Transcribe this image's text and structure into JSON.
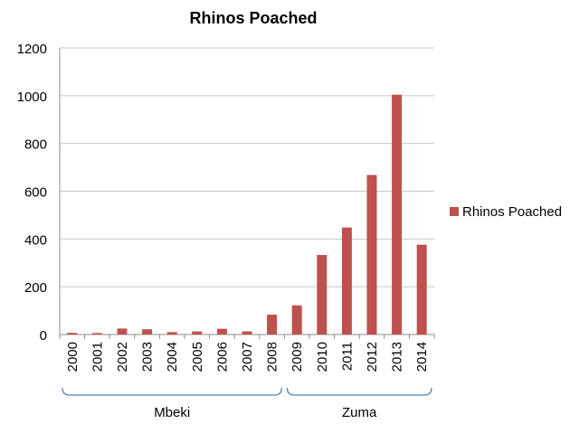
{
  "chart_data": {
    "type": "bar",
    "title": "Rhinos Poached",
    "categories": [
      "2000",
      "2001",
      "2002",
      "2003",
      "2004",
      "2005",
      "2006",
      "2007",
      "2008",
      "2009",
      "2010",
      "2011",
      "2012",
      "2013",
      "2014"
    ],
    "series": [
      {
        "name": "Rhinos Poached",
        "values": [
          7,
          6,
          25,
          22,
          10,
          13,
          24,
          13,
          83,
          122,
          333,
          448,
          668,
          1004,
          376
        ],
        "color": "#c0504d"
      }
    ],
    "ylim": [
      0,
      1200
    ],
    "yticks": [
      0,
      200,
      400,
      600,
      800,
      1000,
      1200
    ],
    "grid": true,
    "legend": "right",
    "groups": [
      {
        "label": "Mbeki",
        "from": "2000",
        "to": "2008"
      },
      {
        "label": "Zuma",
        "from": "2009",
        "to": "2014"
      }
    ],
    "bracket_color": "#4f81bd"
  }
}
